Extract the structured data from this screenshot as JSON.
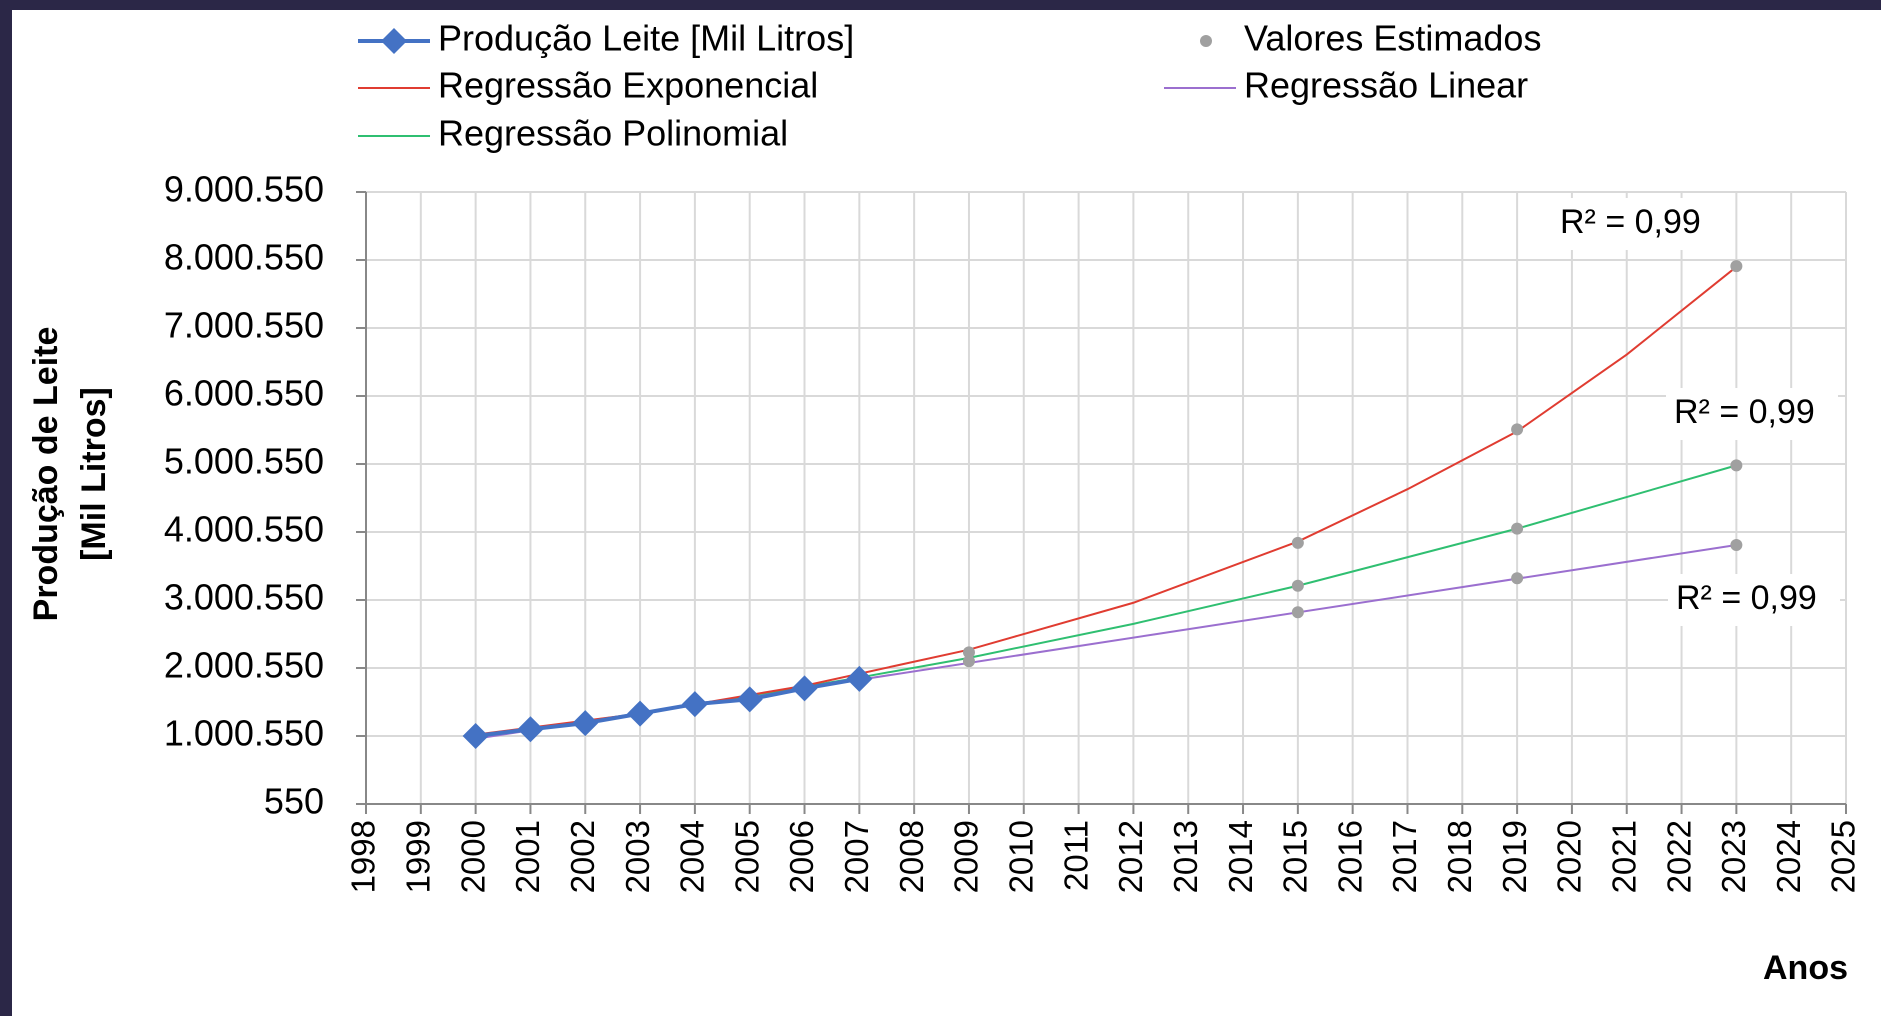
{
  "chart_data": {
    "type": "line",
    "ylabel": [
      "Produção de Leite",
      "[Mil Litros]"
    ],
    "xlabel": "Anos",
    "xlim": [
      1998,
      2025
    ],
    "xticks": [
      1998,
      1999,
      2000,
      2001,
      2002,
      2003,
      2004,
      2005,
      2006,
      2007,
      2008,
      2009,
      2010,
      2011,
      2012,
      2013,
      2014,
      2015,
      2016,
      2017,
      2018,
      2019,
      2020,
      2021,
      2022,
      2023,
      2024,
      2025
    ],
    "ylim": [
      550,
      9000550
    ],
    "yticks": [
      550,
      {
        "value": 1000550,
        "label": "1.000.550"
      },
      {
        "value": 2000550,
        "label": "2.000.550"
      },
      {
        "value": 3000550,
        "label": "3.000.550"
      },
      {
        "value": 4000550,
        "label": "4.000.550"
      },
      {
        "value": 5000550,
        "label": "5.000.550"
      },
      {
        "value": 6000550,
        "label": "6.000.550"
      },
      {
        "value": 7000550,
        "label": "7.000.550"
      },
      {
        "value": 8000550,
        "label": "8.000.550"
      },
      {
        "value": 9000550,
        "label": "9.000.550"
      }
    ],
    "grid": true,
    "legend": "top",
    "series": [
      {
        "name": "Produção Leite [Mil Litros]",
        "color": "#4472c4",
        "line": true,
        "marker": "diamond",
        "x": [
          2000,
          2001,
          2002,
          2003,
          2004,
          2005,
          2006,
          2007
        ],
        "values": [
          1000550,
          1100000,
          1190000,
          1330000,
          1470000,
          1540000,
          1700000,
          1840000
        ]
      },
      {
        "name": "Valores Estimados",
        "color": "#a0a0a0",
        "line": false,
        "marker": "circle",
        "x": [
          2009,
          2009,
          2015,
          2015,
          2015,
          2019,
          2019,
          2019,
          2023,
          2023,
          2023
        ],
        "values": [
          2230000,
          2100000,
          3840000,
          3210000,
          2820000,
          5510000,
          4050000,
          3320000,
          7910000,
          4980000,
          3810000
        ]
      },
      {
        "name": "Regressão Exponencial",
        "color": "#e03c31",
        "line": true,
        "marker": "none",
        "x": [
          2000,
          2003,
          2006,
          2009,
          2012,
          2015,
          2017,
          2019,
          2021,
          2023
        ],
        "values": [
          1020000,
          1330000,
          1740000,
          2270000,
          2960000,
          3860000,
          4630000,
          5480000,
          6610000,
          7900000
        ]
      },
      {
        "name": "Regressão Linear",
        "color": "#9b6fcf",
        "line": true,
        "marker": "none",
        "x": [
          2000,
          2023
        ],
        "values": [
          960000,
          3810000
        ]
      },
      {
        "name": "Regressão Polinomial",
        "color": "#2fbf71",
        "line": true,
        "marker": "none",
        "x": [
          2000,
          2003,
          2007,
          2009,
          2012,
          2015,
          2019,
          2023
        ],
        "values": [
          1000000,
          1330000,
          1860000,
          2150000,
          2650000,
          3210000,
          4050000,
          4980000
        ]
      }
    ],
    "annotations": [
      "R² = 0,99",
      "R² = 0,99",
      "R² = 0,99"
    ]
  }
}
